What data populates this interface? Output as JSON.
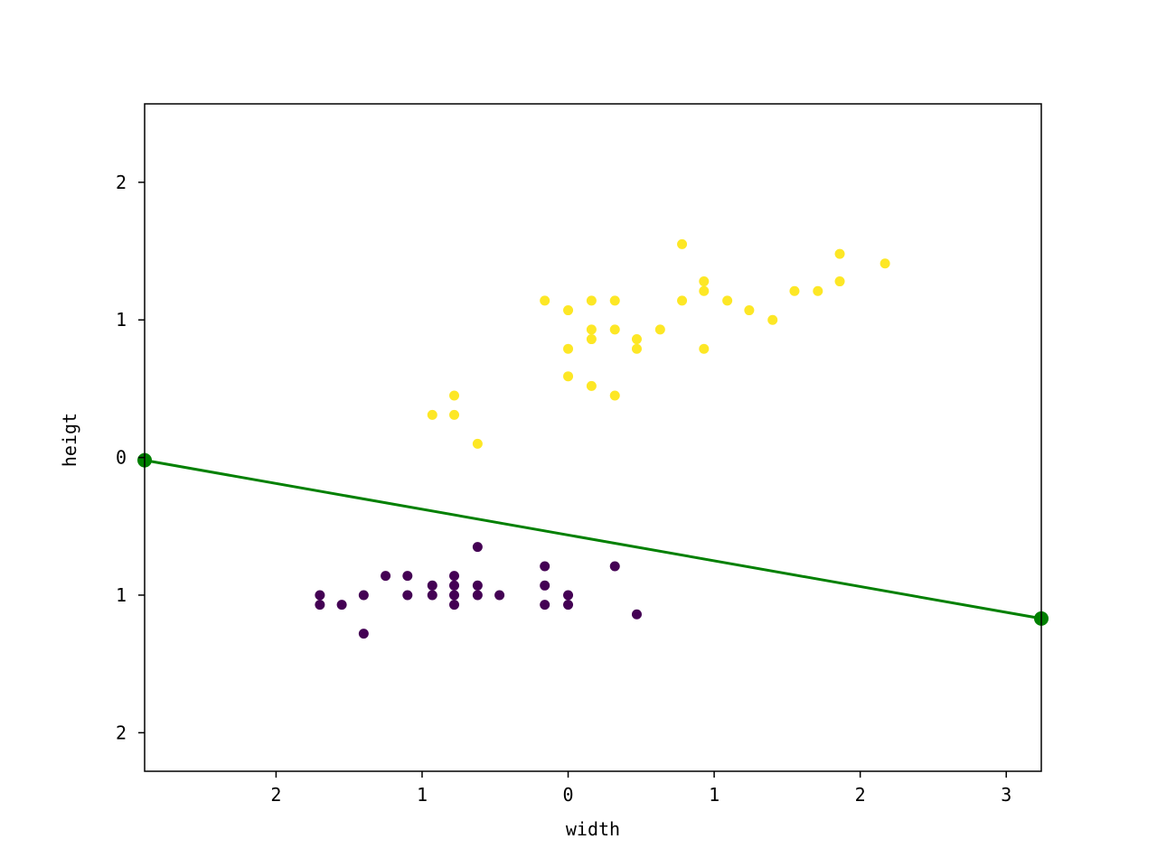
{
  "chart_data": {
    "type": "scatter",
    "title": "",
    "xlabel": "width",
    "ylabel": "heigt",
    "xlim": [
      -2.9,
      3.24
    ],
    "ylim": [
      -2.28,
      2.57
    ],
    "grid": false,
    "legend": "none",
    "x_ticks": [
      {
        "value": -2,
        "label": "2"
      },
      {
        "value": -1,
        "label": "1"
      },
      {
        "value": 0,
        "label": "0"
      },
      {
        "value": 1,
        "label": "1"
      },
      {
        "value": 2,
        "label": "2"
      },
      {
        "value": 3,
        "label": "3"
      }
    ],
    "y_ticks": [
      {
        "value": 2,
        "label": "2"
      },
      {
        "value": 1,
        "label": "1"
      },
      {
        "value": 0,
        "label": "0"
      },
      {
        "value": -1,
        "label": "1"
      },
      {
        "value": -2,
        "label": "2"
      }
    ],
    "colors": {
      "class_0": "#440154",
      "class_1": "#fde725",
      "boundary": "#008000",
      "axes": "#000000"
    },
    "series": [
      {
        "points": [
          [
            -1.7,
            -1.0
          ],
          [
            -1.7,
            -1.07
          ],
          [
            -1.55,
            -1.07
          ],
          [
            -1.4,
            -1.0
          ],
          [
            -1.4,
            -1.28
          ],
          [
            -1.25,
            -0.86
          ],
          [
            -1.1,
            -0.86
          ],
          [
            -1.1,
            -1.0
          ],
          [
            -0.93,
            -0.93
          ],
          [
            -0.93,
            -1.0
          ],
          [
            -0.78,
            -0.86
          ],
          [
            -0.78,
            -0.93
          ],
          [
            -0.78,
            -1.0
          ],
          [
            -0.78,
            -1.07
          ],
          [
            -0.62,
            -0.65
          ],
          [
            -0.62,
            -0.93
          ],
          [
            -0.62,
            -1.0
          ],
          [
            -0.47,
            -1.0
          ],
          [
            -0.16,
            -0.79
          ],
          [
            -0.16,
            -0.93
          ],
          [
            -0.16,
            -1.07
          ],
          [
            0.0,
            -1.0
          ],
          [
            0.0,
            -1.07
          ],
          [
            0.32,
            -0.79
          ],
          [
            0.47,
            -1.14
          ]
        ]
      },
      {
        "points": [
          [
            -0.93,
            0.31
          ],
          [
            -0.78,
            0.31
          ],
          [
            -0.78,
            0.45
          ],
          [
            -0.62,
            0.1
          ],
          [
            -0.16,
            1.14
          ],
          [
            0.0,
            1.07
          ],
          [
            0.0,
            0.79
          ],
          [
            0.0,
            0.59
          ],
          [
            0.16,
            1.14
          ],
          [
            0.16,
            0.93
          ],
          [
            0.16,
            0.86
          ],
          [
            0.16,
            0.52
          ],
          [
            0.32,
            1.14
          ],
          [
            0.32,
            0.93
          ],
          [
            0.32,
            0.45
          ],
          [
            0.47,
            0.86
          ],
          [
            0.47,
            0.79
          ],
          [
            0.63,
            0.93
          ],
          [
            0.78,
            1.14
          ],
          [
            0.78,
            1.55
          ],
          [
            0.93,
            1.28
          ],
          [
            0.93,
            1.21
          ],
          [
            0.93,
            0.79
          ],
          [
            1.09,
            1.14
          ],
          [
            1.24,
            1.07
          ],
          [
            1.4,
            1.0
          ],
          [
            1.55,
            1.21
          ],
          [
            1.71,
            1.21
          ],
          [
            1.86,
            1.28
          ],
          [
            1.86,
            1.48
          ],
          [
            2.17,
            1.41
          ]
        ]
      }
    ],
    "boundary_line": {
      "points": [
        [
          -2.9,
          -0.02
        ],
        [
          3.24,
          -1.17
        ]
      ]
    }
  }
}
